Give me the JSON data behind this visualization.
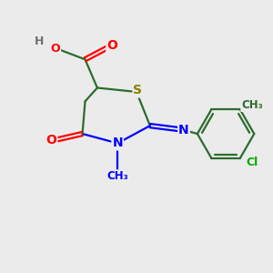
{
  "bg_color": "#ebebeb",
  "atom_colors": {
    "S": "#8B8000",
    "N": "#0000FF",
    "O": "#FF0000",
    "C_bond": "#2d6b2d",
    "Cl": "#00AA00",
    "H": "#707070",
    "default": "#2d6b2d"
  },
  "bond_color": "#2d6b2d",
  "figsize": [
    3.0,
    3.0
  ],
  "dpi": 100
}
